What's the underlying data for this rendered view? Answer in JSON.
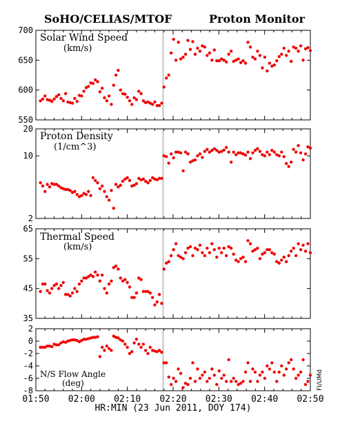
{
  "header": {
    "left_title": "SoHO/CELIAS/MTOF",
    "right_title": "Proton Monitor"
  },
  "x_axis": {
    "ticks": [
      "01:50",
      "02:00",
      "02:10",
      "02:20",
      "02:30",
      "02:40",
      "02:50"
    ],
    "title": "HR:MIN (23 Jun 2011, DOY 174)",
    "range_min": [
      110,
      170
    ]
  },
  "side_label": "FI/UMd",
  "colors": {
    "point": "#ee0000",
    "frame": "#000000",
    "marker_line": "#999999"
  },
  "chart_data": [
    {
      "type": "scatter",
      "name": "solar_wind_speed",
      "label": "Solar Wind Speed",
      "units": "(km/s)",
      "ylim": [
        550,
        700
      ],
      "yticks": [
        550,
        600,
        650,
        700
      ],
      "scale": "linear",
      "segments": [
        {
          "start": 111,
          "end": 137.5,
          "values": [
            582,
            585,
            590,
            584,
            583,
            581,
            585,
            589,
            592,
            586,
            582,
            594,
            580,
            579,
            578,
            586,
            581,
            591,
            590,
            598,
            604,
            606,
            612,
            611,
            617,
            614,
            597,
            603,
            587,
            582,
            590,
            576,
            608,
            625,
            633,
            600,
            594,
            593,
            588,
            582,
            576,
            587,
            584,
            598,
            594,
            582,
            579,
            580,
            578,
            576,
            580,
            574,
            574,
            578
          ]
        },
        {
          "start": 138,
          "end": 170,
          "values": [
            605,
            620,
            625,
            662,
            685,
            650,
            680,
            652,
            655,
            660,
            683,
            668,
            681,
            660,
            670,
            665,
            674,
            672,
            658,
            662,
            650,
            667,
            649,
            649,
            652,
            650,
            647,
            660,
            665,
            648,
            650,
            652,
            646,
            649,
            645,
            680,
            672,
            655,
            652,
            665,
            658,
            637,
            655,
            632,
            645,
            640,
            642,
            649,
            656,
            660,
            670,
            658,
            665,
            648,
            672,
            670,
            665,
            674,
            650,
            669,
            671,
            666
          ]
        }
      ]
    },
    {
      "type": "scatter",
      "name": "proton_density",
      "label": "Proton Density",
      "units": "(1/cm^3)",
      "ylim": [
        2,
        20
      ],
      "yticks": [
        2,
        10,
        20
      ],
      "scale": "log",
      "segments": [
        {
          "start": 111,
          "end": 137.5,
          "values": [
            5.0,
            4.6,
            4.0,
            4.8,
            4.5,
            4.9,
            4.8,
            4.8,
            4.6,
            4.4,
            4.3,
            4.2,
            4.2,
            4.1,
            3.9,
            4.0,
            3.7,
            3.5,
            3.6,
            3.8,
            3.7,
            4.0,
            3.6,
            5.7,
            5.3,
            5.0,
            4.3,
            4.6,
            4.0,
            3.5,
            3.2,
            4.1,
            2.6,
            4.8,
            4.5,
            4.7,
            5.2,
            5.5,
            5.7,
            5.3,
            4.6,
            4.7,
            4.9,
            5.6,
            5.4,
            5.5,
            5.2,
            5.0,
            5.3,
            5.7,
            5.5,
            5.4,
            5.6,
            5.6
          ]
        },
        {
          "start": 138,
          "end": 170,
          "values": [
            10.0,
            9.8,
            8.3,
            10.5,
            9.5,
            11.0,
            11.0,
            10.8,
            6.8,
            11.0,
            10.5,
            8.5,
            8.8,
            9.0,
            10.0,
            10.5,
            9.6,
            11.2,
            11.8,
            11.0,
            11.5,
            12.0,
            11.5,
            11.0,
            11.2,
            11.6,
            12.4,
            11.0,
            8.5,
            11.0,
            10.3,
            10.8,
            10.8,
            10.5,
            10.2,
            11.0,
            9.3,
            10.8,
            11.5,
            12.0,
            11.2,
            10.3,
            10.0,
            11.0,
            10.3,
            11.5,
            11.0,
            10.3,
            10.0,
            11.0,
            9.8,
            8.2,
            7.6,
            8.5,
            11.8,
            11.0,
            13.0,
            10.8,
            9.0,
            10.5,
            12.6,
            12.2
          ]
        }
      ]
    },
    {
      "type": "scatter",
      "name": "thermal_speed",
      "label": "Thermal Speed",
      "units": "(km/s)",
      "ylim": [
        35,
        65
      ],
      "yticks": [
        35,
        45,
        55,
        65
      ],
      "scale": "linear",
      "segments": [
        {
          "start": 111,
          "end": 137.5,
          "values": [
            44.0,
            46.5,
            46.5,
            44.3,
            43.5,
            45.0,
            46.0,
            46.5,
            45.0,
            46.0,
            47.0,
            43.0,
            43.0,
            42.5,
            43.5,
            45.0,
            44.0,
            46.5,
            47.5,
            48.5,
            48.5,
            49.0,
            49.5,
            49.0,
            50.5,
            49.5,
            47.5,
            49.5,
            45.0,
            43.5,
            46.5,
            47.5,
            52.0,
            52.5,
            51.5,
            48.5,
            47.5,
            48.0,
            47.0,
            45.5,
            42.0,
            42.0,
            43.5,
            48.5,
            48.0,
            44.0,
            44.0,
            44.0,
            43.5,
            42.0,
            39.5,
            40.5,
            43.0,
            40.0
          ]
        },
        {
          "start": 138,
          "end": 170,
          "values": [
            51.5,
            53.5,
            54.0,
            56.0,
            58.0,
            60.0,
            56.0,
            55.5,
            55.0,
            57.0,
            58.5,
            59.0,
            56.0,
            58.5,
            58.0,
            59.5,
            57.0,
            56.0,
            58.5,
            57.0,
            60.0,
            58.0,
            55.5,
            58.5,
            57.0,
            58.5,
            56.0,
            59.0,
            58.5,
            56.5,
            54.5,
            54.0,
            55.0,
            55.5,
            54.0,
            61.0,
            60.0,
            57.5,
            58.0,
            58.5,
            55.0,
            56.5,
            57.0,
            58.0,
            58.0,
            57.0,
            56.5,
            54.0,
            53.5,
            54.5,
            55.5,
            54.0,
            56.0,
            57.5,
            58.5,
            56.0,
            60.0,
            58.0,
            59.5,
            57.5,
            60.0,
            57.0
          ]
        }
      ]
    },
    {
      "type": "scatter",
      "name": "ns_flow_angle",
      "label": "N/S Flow Angle",
      "units": "(deg)",
      "ylim": [
        -8,
        2
      ],
      "yticks": [
        -8,
        -6,
        -4,
        -2,
        0,
        2
      ],
      "scale": "linear",
      "segments": [
        {
          "start": 111,
          "end": 137.5,
          "values": [
            -1.0,
            -1.0,
            -1.0,
            -0.8,
            -0.8,
            -0.9,
            -0.5,
            -0.6,
            -0.6,
            -0.3,
            -0.1,
            -0.2,
            0.0,
            0.1,
            0.2,
            0.2,
            0.1,
            -0.1,
            0.1,
            0.3,
            0.3,
            0.4,
            0.5,
            0.6,
            0.6,
            0.7,
            -2.5,
            -1.0,
            -1.5,
            -0.8,
            -1.2,
            -1.5,
            0.8,
            0.6,
            0.5,
            0.2,
            0.0,
            -0.5,
            -1.0,
            -2.0,
            -1.7,
            -0.3,
            0.3,
            -0.5,
            -1.0,
            -0.5,
            -1.5,
            -2.0,
            -1.0,
            -1.5,
            -1.6,
            -1.7,
            -1.5,
            -1.8
          ]
        },
        {
          "start": 138,
          "end": 170,
          "values": [
            -3.5,
            -3.5,
            -5.8,
            -7.0,
            -6.0,
            -6.5,
            -4.5,
            -5.2,
            -7.5,
            -6.8,
            -7.0,
            -6.0,
            -3.5,
            -6.5,
            -4.5,
            -6.0,
            -5.5,
            -5.0,
            -6.5,
            -6.0,
            -4.5,
            -5.5,
            -7.0,
            -4.8,
            -6.0,
            -5.5,
            -6.5,
            -3.0,
            -6.5,
            -6.0,
            -6.5,
            -7.0,
            -6.8,
            -6.5,
            -5.0,
            -3.5,
            -6.5,
            -4.5,
            -5.0,
            -6.5,
            -5.5,
            -5.0,
            -6.0,
            -4.0,
            -4.5,
            -3.5,
            -5.0,
            -6.5,
            -5.0,
            -4.0,
            -5.5,
            -4.5,
            -3.5,
            -3.0,
            -4.5,
            -6.0,
            -5.5,
            -5.0,
            -3.0,
            -7.0,
            -6.5,
            -5.5
          ]
        }
      ]
    }
  ]
}
